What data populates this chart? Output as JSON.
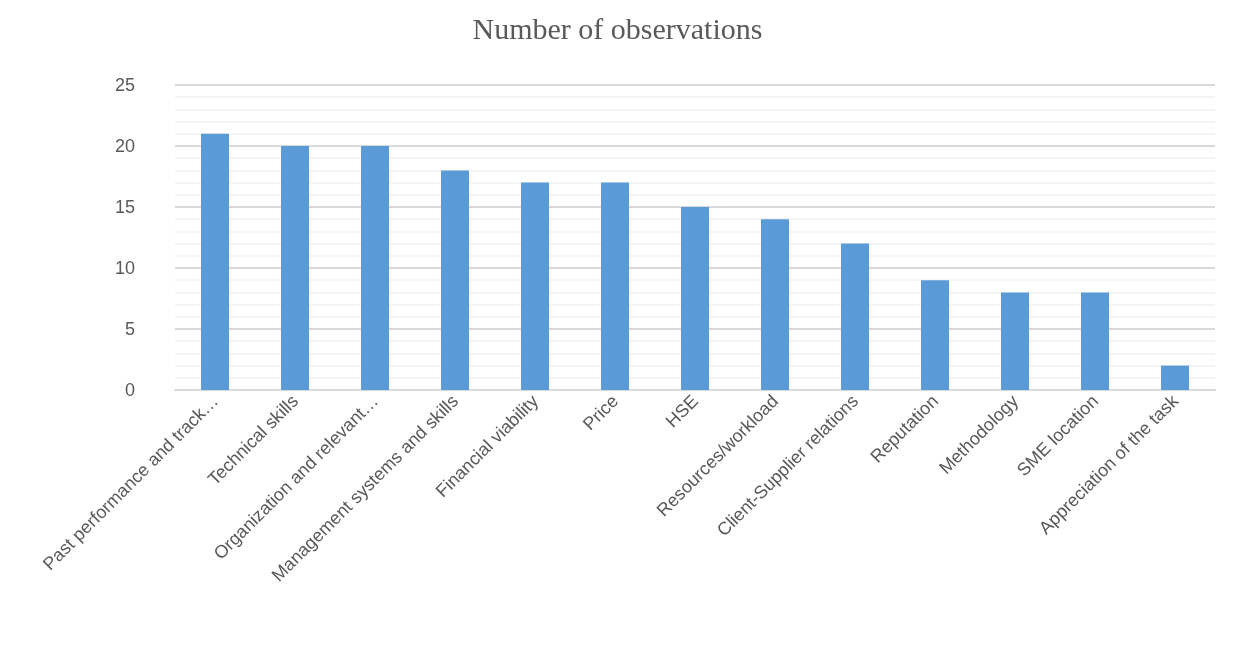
{
  "chart_data": {
    "type": "bar",
    "title": "Number of observations",
    "categories": [
      "Past performance and track…",
      "Technical skills",
      "Organization and relevant…",
      "Management systems and skills",
      "Financial viability",
      "Price",
      "HSE",
      "Resources/workload",
      "Client-Supplier relations",
      "Reputation",
      "Methodology",
      "SME location",
      "Appreciation of the task"
    ],
    "values": [
      21,
      20,
      20,
      18,
      17,
      17,
      15,
      14,
      12,
      9,
      8,
      8,
      2
    ],
    "color": "#5b9bd5",
    "ylim": [
      0,
      25
    ],
    "yticks": [
      0,
      5,
      10,
      15,
      20,
      25
    ],
    "grid": "y"
  }
}
